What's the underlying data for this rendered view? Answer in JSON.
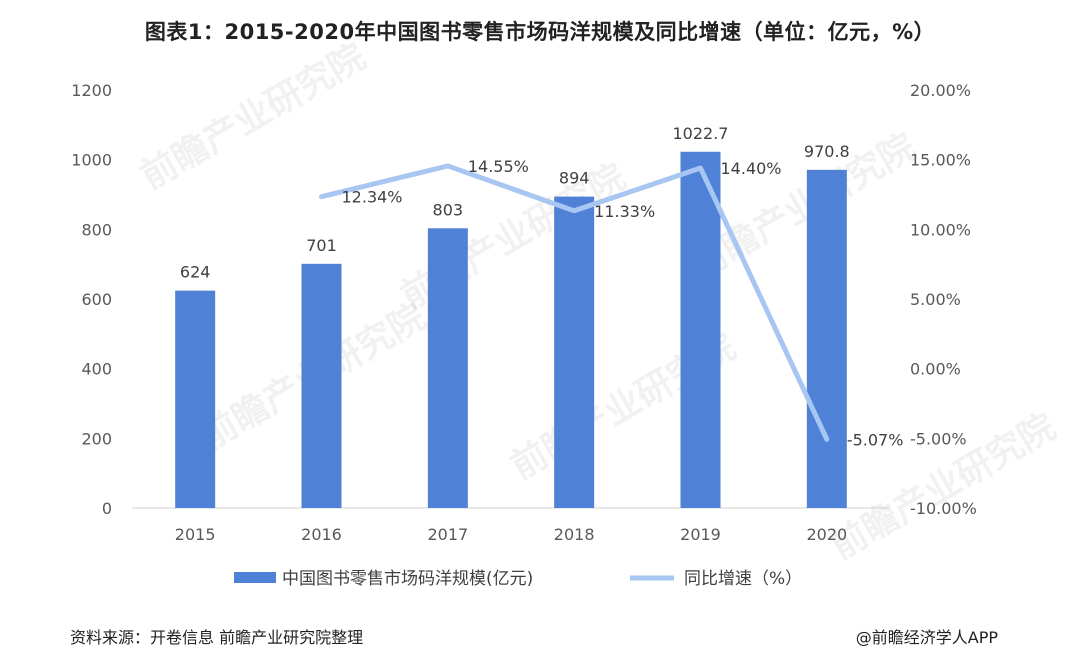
{
  "title": "图表1：2015-2020年中国图书零售市场码洋规模及同比增速（单位：亿元，%）",
  "source": "资料来源：开卷信息 前瞻产业研究院整理",
  "brand": "@前瞻经济学人APP",
  "watermark": "前瞻产业研究院",
  "colors": {
    "bar": "#4F81D7",
    "line": "#A8C6F2"
  },
  "chart_data": {
    "type": "bar",
    "categories": [
      "2015",
      "2016",
      "2017",
      "2018",
      "2019",
      "2020"
    ],
    "series": [
      {
        "name": "中国图书零售市场码洋规模(亿元)",
        "type": "bar",
        "axis": "left",
        "values": [
          624,
          701,
          803,
          894,
          1022.7,
          970.8
        ],
        "labels": [
          "624",
          "701",
          "803",
          "894",
          "1022.7",
          "970.8"
        ]
      },
      {
        "name": "同比增速（%）",
        "type": "line",
        "axis": "right",
        "values": [
          null,
          12.34,
          14.55,
          11.33,
          14.4,
          -5.07
        ],
        "labels": [
          "",
          "12.34%",
          "14.55%",
          "11.33%",
          "14.40%",
          "-5.07%"
        ]
      }
    ],
    "y_left": {
      "min": 0,
      "max": 1200,
      "ticks": [
        "0",
        "200",
        "400",
        "600",
        "800",
        "1000",
        "1200"
      ]
    },
    "y_right": {
      "min": -10,
      "max": 20,
      "ticks": [
        "-10.00%",
        "-5.00%",
        "0.00%",
        "5.00%",
        "10.00%",
        "15.00%",
        "20.00%"
      ]
    },
    "grid": false,
    "legend": "bottom"
  }
}
